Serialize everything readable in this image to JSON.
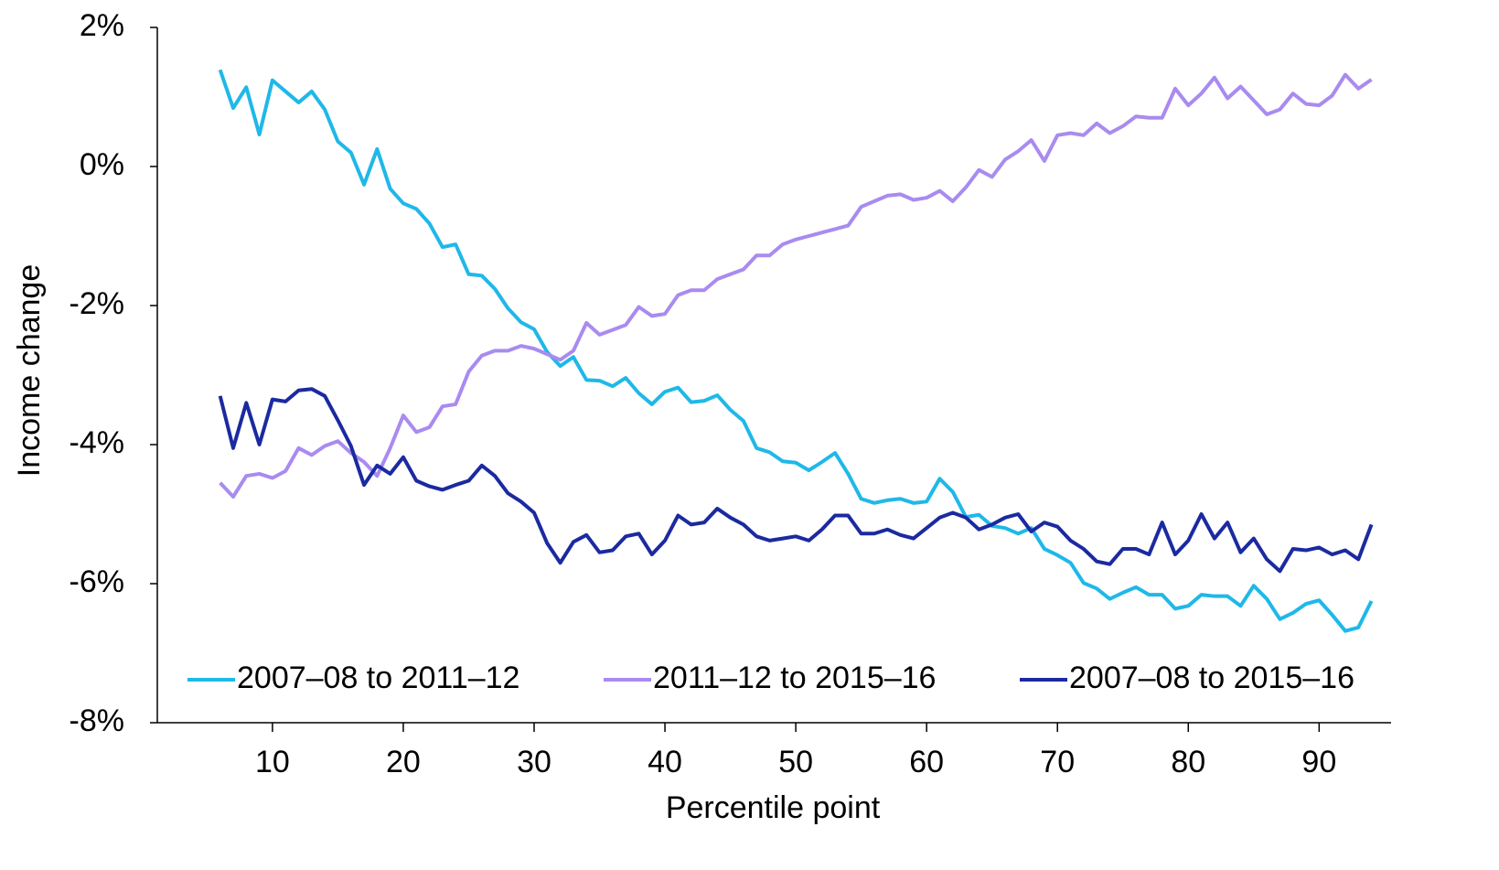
{
  "chart_data": {
    "type": "line",
    "x_label": "Percentile point",
    "y_label": "Income change",
    "x": [
      6,
      7,
      8,
      9,
      10,
      11,
      12,
      13,
      14,
      15,
      16,
      17,
      18,
      19,
      20,
      21,
      22,
      23,
      24,
      25,
      26,
      27,
      28,
      29,
      30,
      31,
      32,
      33,
      34,
      35,
      36,
      37,
      38,
      39,
      40,
      41,
      42,
      43,
      44,
      45,
      46,
      47,
      48,
      49,
      50,
      51,
      52,
      53,
      54,
      55,
      56,
      57,
      58,
      59,
      60,
      61,
      62,
      63,
      64,
      65,
      66,
      67,
      68,
      69,
      70,
      71,
      72,
      73,
      74,
      75,
      76,
      77,
      78,
      79,
      80,
      81,
      82,
      83,
      84,
      85,
      86,
      87,
      88,
      89,
      90,
      91,
      92,
      93,
      94
    ],
    "series": [
      {
        "name": "2007–08 to 2011–12",
        "color": "#1fb8e8",
        "values": [
          1.39,
          0.84,
          1.14,
          0.46,
          1.24,
          1.08,
          0.92,
          1.08,
          0.82,
          0.36,
          0.2,
          -0.26,
          0.25,
          -0.32,
          -0.53,
          -0.61,
          -0.82,
          -1.16,
          -1.12,
          -1.55,
          -1.57,
          -1.76,
          -2.04,
          -2.24,
          -2.34,
          -2.67,
          -2.87,
          -2.74,
          -3.07,
          -3.08,
          -3.16,
          -3.04,
          -3.26,
          -3.42,
          -3.24,
          -3.18,
          -3.39,
          -3.37,
          -3.29,
          -3.5,
          -3.66,
          -4.05,
          -4.11,
          -4.24,
          -4.26,
          -4.37,
          -4.25,
          -4.12,
          -4.42,
          -4.78,
          -4.84,
          -4.8,
          -4.78,
          -4.84,
          -4.82,
          -4.49,
          -4.68,
          -5.04,
          -5.01,
          -5.17,
          -5.2,
          -5.28,
          -5.2,
          -5.5,
          -5.59,
          -5.7,
          -5.99,
          -6.07,
          -6.22,
          -6.13,
          -6.05,
          -6.16,
          -6.16,
          -6.36,
          -6.32,
          -6.16,
          -6.18,
          -6.18,
          -6.32,
          -6.03,
          -6.22,
          -6.51,
          -6.42,
          -6.29,
          -6.24,
          -6.45,
          -6.68,
          -6.63,
          -6.25
        ]
      },
      {
        "name": "2011–12 to 2015–16",
        "color": "#a98bf0",
        "values": [
          -4.55,
          -4.75,
          -4.45,
          -4.42,
          -4.48,
          -4.38,
          -4.05,
          -4.15,
          -4.02,
          -3.95,
          -4.12,
          -4.25,
          -4.45,
          -4.05,
          -3.58,
          -3.82,
          -3.75,
          -3.45,
          -3.42,
          -2.95,
          -2.72,
          -2.65,
          -2.65,
          -2.58,
          -2.62,
          -2.7,
          -2.78,
          -2.65,
          -2.25,
          -2.42,
          -2.35,
          -2.28,
          -2.02,
          -2.15,
          -2.12,
          -1.85,
          -1.78,
          -1.78,
          -1.62,
          -1.55,
          -1.48,
          -1.28,
          -1.28,
          -1.12,
          -1.05,
          -1.0,
          -0.95,
          -0.9,
          -0.85,
          -0.58,
          -0.5,
          -0.42,
          -0.4,
          -0.48,
          -0.45,
          -0.35,
          -0.5,
          -0.3,
          -0.05,
          -0.15,
          0.1,
          0.22,
          0.38,
          0.08,
          0.45,
          0.48,
          0.45,
          0.62,
          0.48,
          0.58,
          0.72,
          0.7,
          0.7,
          1.12,
          0.88,
          1.05,
          1.28,
          0.98,
          1.15,
          0.95,
          0.75,
          0.82,
          1.05,
          0.9,
          0.88,
          1.02,
          1.32,
          1.12,
          1.25
        ]
      },
      {
        "name": "2007–08 to 2015–16",
        "color": "#1b2aa0",
        "values": [
          -3.3,
          -4.05,
          -3.4,
          -4.0,
          -3.35,
          -3.38,
          -3.22,
          -3.2,
          -3.3,
          -3.65,
          -4.02,
          -4.58,
          -4.3,
          -4.42,
          -4.18,
          -4.52,
          -4.6,
          -4.65,
          -4.58,
          -4.52,
          -4.3,
          -4.45,
          -4.7,
          -4.82,
          -4.98,
          -5.42,
          -5.7,
          -5.4,
          -5.3,
          -5.55,
          -5.52,
          -5.32,
          -5.28,
          -5.58,
          -5.38,
          -5.02,
          -5.15,
          -5.12,
          -4.92,
          -5.05,
          -5.15,
          -5.32,
          -5.38,
          -5.35,
          -5.32,
          -5.38,
          -5.22,
          -5.02,
          -5.02,
          -5.28,
          -5.28,
          -5.22,
          -5.3,
          -5.35,
          -5.2,
          -5.05,
          -4.98,
          -5.05,
          -5.22,
          -5.15,
          -5.05,
          -5.0,
          -5.25,
          -5.12,
          -5.18,
          -5.38,
          -5.5,
          -5.68,
          -5.72,
          -5.5,
          -5.5,
          -5.58,
          -5.12,
          -5.58,
          -5.38,
          -5.0,
          -5.35,
          -5.12,
          -5.55,
          -5.35,
          -5.65,
          -5.82,
          -5.5,
          -5.52,
          -5.48,
          -5.58,
          -5.52,
          -5.65,
          -5.15
        ]
      }
    ],
    "xlim": [
      1.2,
      95.5
    ],
    "xticks": [
      10,
      20,
      30,
      40,
      50,
      60,
      70,
      80,
      90
    ],
    "ylim": [
      -8,
      2
    ],
    "yticks": [
      {
        "value": -8,
        "label": "-8%"
      },
      {
        "value": -6,
        "label": "-6%"
      },
      {
        "value": -4,
        "label": "-4%"
      },
      {
        "value": -2,
        "label": "-2%"
      },
      {
        "value": 0,
        "label": "0%"
      },
      {
        "value": 2,
        "label": "2%"
      }
    ],
    "legend": "bottom"
  }
}
